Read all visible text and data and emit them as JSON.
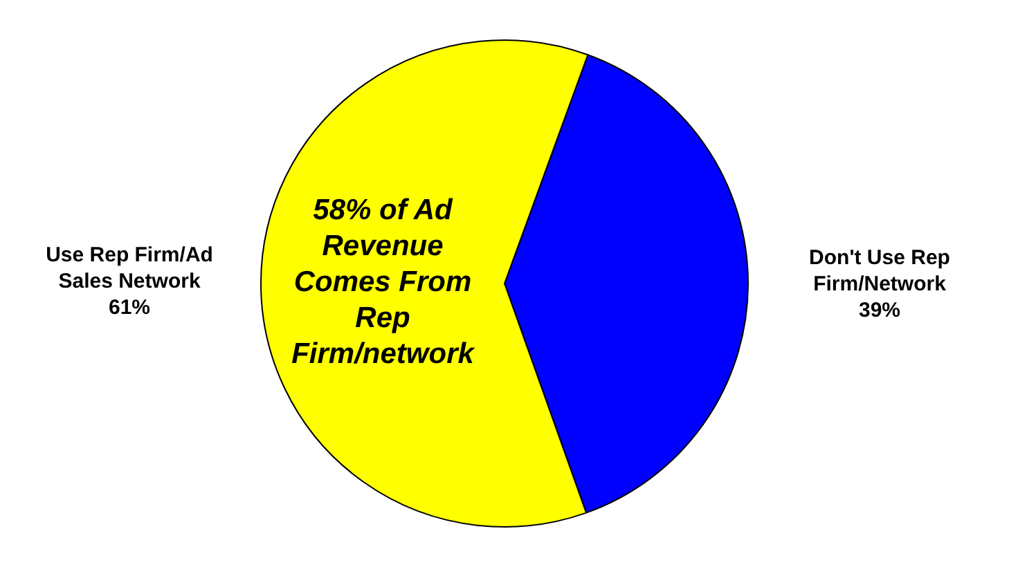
{
  "chart_data": {
    "type": "pie",
    "categories": [
      "Don't Use Rep Firm/Network",
      "Use Rep Firm/Ad Sales Network"
    ],
    "values": [
      39,
      61
    ],
    "colors": [
      "#0000ff",
      "#ffff00"
    ],
    "value_labels": [
      "39%",
      "61%"
    ],
    "annotations": [
      "58% of Ad Revenue Comes From Rep Firm/network"
    ],
    "legend": false
  }
}
